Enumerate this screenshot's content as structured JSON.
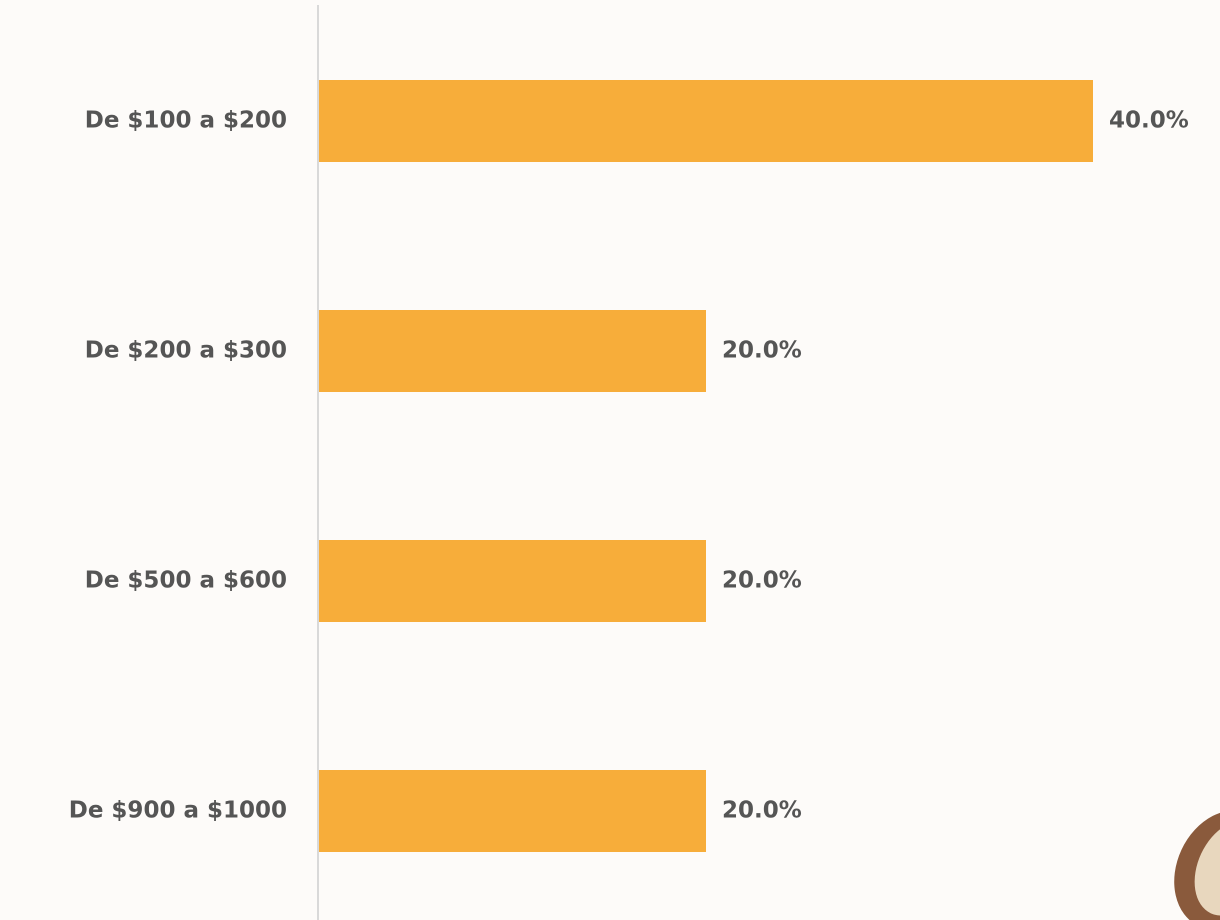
{
  "chart_data": {
    "type": "hbar",
    "categories": [
      "De $100 a $200",
      "De $200 a $300",
      "De $500 a $600",
      "De $900 a $1000"
    ],
    "values": [
      40,
      20,
      20,
      20
    ],
    "value_labels": [
      "40.0%",
      "20.0%",
      "20.0%",
      "20.0%"
    ],
    "color": "#f7ad3a"
  }
}
